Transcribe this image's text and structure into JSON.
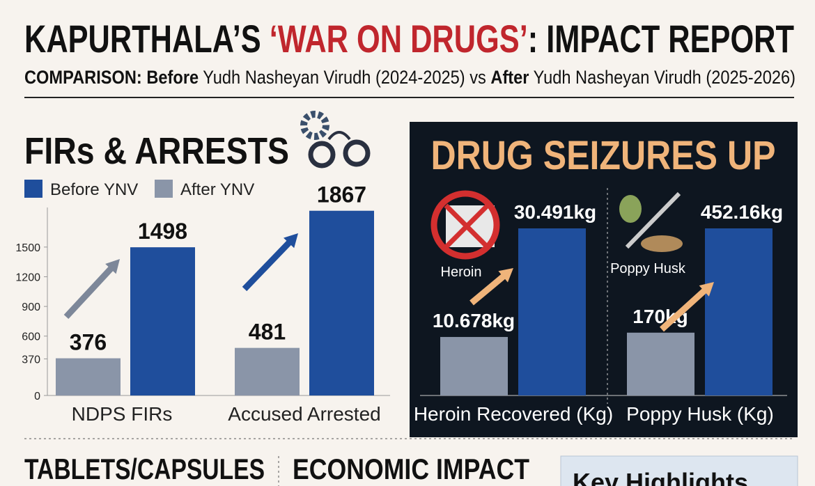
{
  "header": {
    "title": [
      "KAPURTHALA’S ",
      "‘WAR ON DRUGS’",
      ": IMPACT REPORT"
    ],
    "subtitle": [
      "COMPARISON: ",
      "Before",
      " Yudh Nasheyan Virudh (2024-2025) vs ",
      "After",
      " Yudh Nasheyan Virudh (2025-2026)"
    ]
  },
  "chart_data": [
    {
      "type": "bar",
      "title": "FIRs & ARRESTS",
      "categories": [
        "NDPS FIRs",
        "Accused Arrested"
      ],
      "series": [
        {
          "name": "Before YNV",
          "color": "#1f4e9c",
          "values": [
            1498,
            1867
          ]
        },
        {
          "name": "After YNV",
          "color": "#8a95a8",
          "values": [
            376,
            481
          ]
        }
      ],
      "ylim": [
        0,
        1900
      ],
      "yticks": [
        0,
        370,
        600,
        900,
        1200,
        1500
      ],
      "grid": false,
      "legend": "top-left"
    },
    {
      "type": "bar",
      "title": "DRUG SEIZURES UP",
      "categories": [
        "Heroin Recovered (Kg)",
        "Poppy Husk (Kg)"
      ],
      "icon_labels": [
        "Heroin",
        "Poppy Husk"
      ],
      "shared_scale": false,
      "series": [
        {
          "color": "#1f4e9c",
          "values": [
            30.491,
            452.16
          ],
          "value_labels": [
            "30.491kg",
            "452.16kg"
          ]
        },
        {
          "color": "#8a95a8",
          "values": [
            10.678,
            170
          ],
          "value_labels": [
            "10.678kg",
            "170kg"
          ]
        }
      ]
    }
  ],
  "sections": [
    "TABLETS/CAPSULES",
    "ECONOMIC IMPACT",
    "Key Highlights"
  ]
}
